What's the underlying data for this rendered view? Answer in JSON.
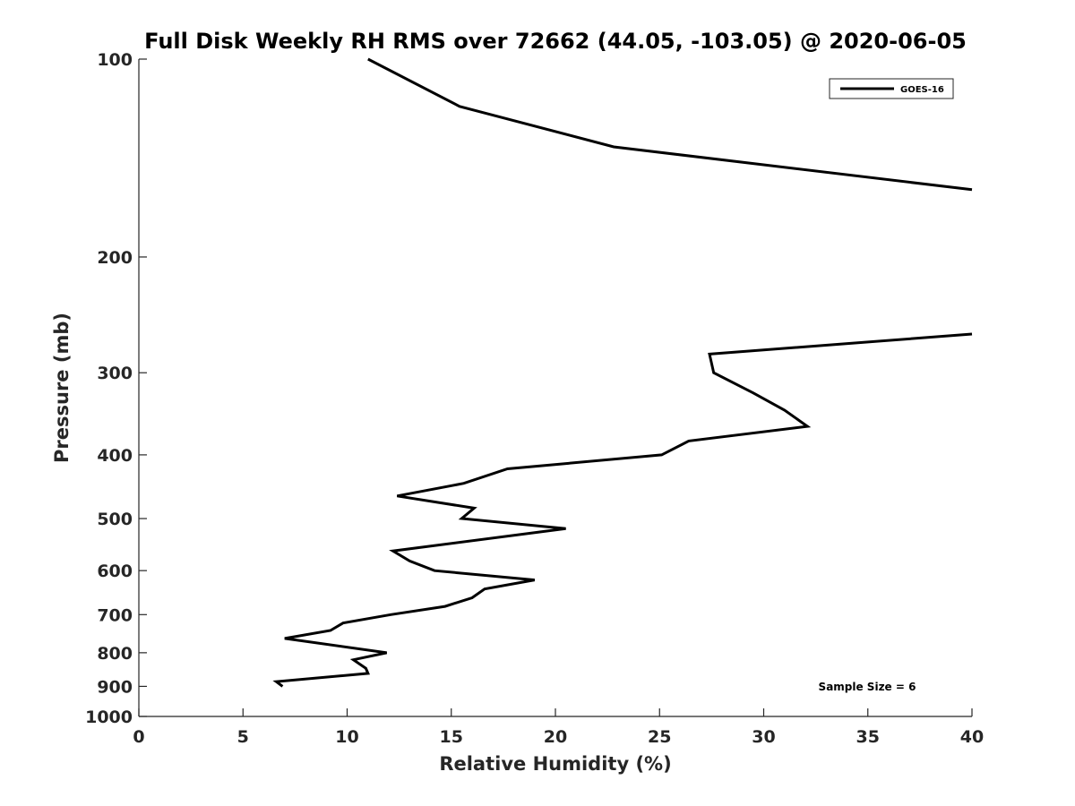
{
  "chart_data": {
    "type": "line",
    "title": "Full Disk Weekly RH RMS over 72662 (44.05, -103.05) @ 2020-06-05",
    "xlabel": "Relative Humidity (%)",
    "ylabel": "Pressure (mb)",
    "xlim": [
      0,
      40
    ],
    "ylim": [
      100,
      1000
    ],
    "yscale": "log",
    "y_reversed": true,
    "x_ticks": [
      0,
      5,
      10,
      15,
      20,
      25,
      30,
      35,
      40
    ],
    "x_tick_labels": [
      "0",
      "5",
      "10",
      "15",
      "20",
      "25",
      "30",
      "35",
      "40"
    ],
    "y_ticks": [
      100,
      200,
      300,
      400,
      500,
      600,
      700,
      800,
      900,
      1000
    ],
    "y_tick_labels": [
      "100",
      "200",
      "300",
      "400",
      "500",
      "600",
      "700",
      "800",
      "900",
      "1000"
    ],
    "grid": false,
    "legend_position": "top-right",
    "annotation": "Sample Size = 6",
    "series": [
      {
        "name": "GOES-16",
        "color": "#000000",
        "x": [
          11.0,
          15.4,
          22.8,
          40.0,
          null,
          40.0,
          27.4,
          27.6,
          29.5,
          31.0,
          32.1,
          26.4,
          25.1,
          17.7,
          15.6,
          12.4,
          16.1,
          15.5,
          20.5,
          12.2,
          13.0,
          14.2,
          19.0,
          16.6,
          16.0,
          14.7,
          12.1,
          9.8,
          9.2,
          7.0,
          11.9,
          10.3,
          10.9,
          11.0,
          6.6,
          6.9
        ],
        "y": [
          100,
          118,
          136,
          158,
          null,
          262,
          281,
          300,
          322,
          342,
          362,
          381,
          400,
          420,
          442,
          462,
          482,
          500,
          518,
          560,
          580,
          600,
          620,
          640,
          660,
          680,
          700,
          721,
          740,
          761,
          800,
          820,
          845,
          860,
          885,
          900
        ]
      }
    ]
  }
}
